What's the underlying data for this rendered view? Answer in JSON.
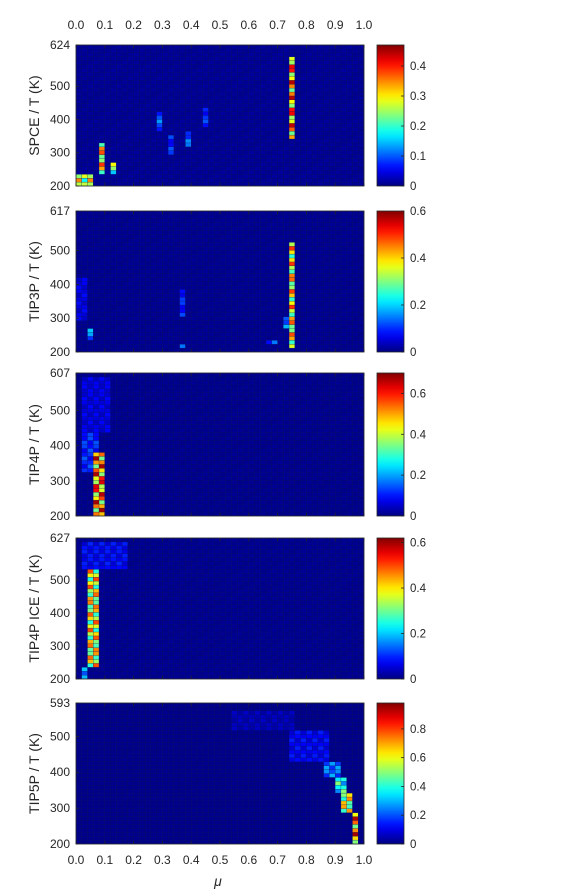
{
  "chart_data": [
    {
      "type": "heatmap",
      "ylabel": "SPCE / T (K)",
      "x_range": [
        0,
        1
      ],
      "y_range": [
        200,
        624
      ],
      "y_ticks": [
        200,
        300,
        400,
        500,
        624
      ],
      "colorbar_range": [
        0,
        0.47
      ],
      "colorbar_ticks": [
        "0",
        "0.1",
        "0.2",
        "0.3",
        "0.4"
      ],
      "hotspots": [
        {
          "mu": [
            0.74,
            0.76
          ],
          "T": [
            340,
            590
          ],
          "peak": 0.45
        },
        {
          "mu": [
            0.08,
            0.1
          ],
          "T": [
            240,
            330
          ],
          "peak": 0.4
        },
        {
          "mu": [
            0.0,
            0.06
          ],
          "T": [
            205,
            232
          ],
          "peak": 0.35
        },
        {
          "mu": [
            0.12,
            0.14
          ],
          "T": [
            230,
            265
          ],
          "peak": 0.3
        },
        {
          "mu": [
            0.28,
            0.29
          ],
          "T": [
            360,
            420
          ],
          "peak": 0.13
        },
        {
          "mu": [
            0.38,
            0.39
          ],
          "T": [
            320,
            370
          ],
          "peak": 0.13
        },
        {
          "mu": [
            0.44,
            0.45
          ],
          "T": [
            380,
            440
          ],
          "peak": 0.1
        },
        {
          "mu": [
            0.33,
            0.34
          ],
          "T": [
            300,
            350
          ],
          "peak": 0.1
        }
      ]
    },
    {
      "type": "heatmap",
      "ylabel": "TIP3P / T (K)",
      "x_range": [
        0,
        1
      ],
      "y_range": [
        200,
        617
      ],
      "y_ticks": [
        200,
        300,
        400,
        500,
        617
      ],
      "colorbar_range": [
        0,
        0.6
      ],
      "colorbar_ticks": [
        "0",
        "0.2",
        "0.4",
        "0.6"
      ],
      "hotspots": [
        {
          "mu": [
            0.74,
            0.76
          ],
          "T": [
            210,
            530
          ],
          "peak": 0.5
        },
        {
          "mu": [
            0.73,
            0.74
          ],
          "T": [
            270,
            300
          ],
          "peak": 0.2
        },
        {
          "mu": [
            0.05,
            0.06
          ],
          "T": [
            240,
            270
          ],
          "peak": 0.2
        },
        {
          "mu": [
            0.37,
            0.38
          ],
          "T": [
            300,
            390
          ],
          "peak": 0.12
        },
        {
          "mu": [
            0.67,
            0.69
          ],
          "T": [
            220,
            240
          ],
          "peak": 0.15
        },
        {
          "mu": [
            0.36,
            0.37
          ],
          "T": [
            210,
            225
          ],
          "peak": 0.15
        },
        {
          "mu": [
            0.01,
            0.03
          ],
          "T": [
            290,
            420
          ],
          "peak": 0.08
        }
      ]
    },
    {
      "type": "heatmap",
      "ylabel": "TIP4P / T (K)",
      "x_range": [
        0,
        1
      ],
      "y_range": [
        200,
        607
      ],
      "y_ticks": [
        200,
        300,
        400,
        500,
        607
      ],
      "colorbar_range": [
        0,
        0.7
      ],
      "colorbar_ticks": [
        "0",
        "0.2",
        "0.4",
        "0.6"
      ],
      "hotspots": [
        {
          "mu": [
            0.07,
            0.09
          ],
          "T": [
            205,
            380
          ],
          "peak": 0.68
        },
        {
          "mu": [
            0.02,
            0.08
          ],
          "T": [
            330,
            440
          ],
          "peak": 0.15
        },
        {
          "mu": [
            0.02,
            0.12
          ],
          "T": [
            440,
            600
          ],
          "peak": 0.09
        }
      ]
    },
    {
      "type": "heatmap",
      "ylabel": "TIP4P ICE / T (K)",
      "x_range": [
        0,
        1
      ],
      "y_range": [
        200,
        627
      ],
      "y_ticks": [
        200,
        300,
        400,
        500,
        627
      ],
      "colorbar_range": [
        0,
        0.62
      ],
      "colorbar_ticks": [
        "0",
        "0.2",
        "0.4",
        "0.6"
      ],
      "hotspots": [
        {
          "mu": [
            0.04,
            0.08
          ],
          "T": [
            230,
            530
          ],
          "peak": 0.5
        },
        {
          "mu": [
            0.02,
            0.04
          ],
          "T": [
            205,
            240
          ],
          "peak": 0.25
        },
        {
          "mu": [
            0.03,
            0.18
          ],
          "T": [
            530,
            620
          ],
          "peak": 0.1
        }
      ]
    },
    {
      "type": "heatmap",
      "ylabel": "TIP5P / T (K)",
      "xlabel": "μ",
      "x_range": [
        0,
        1
      ],
      "y_range": [
        200,
        593
      ],
      "y_ticks": [
        200,
        300,
        400,
        500,
        593
      ],
      "x_ticks": [
        "0.0",
        "0.1",
        "0.2",
        "0.3",
        "0.4",
        "0.5",
        "0.6",
        "0.7",
        "0.8",
        "0.9",
        "1.0"
      ],
      "colorbar_range": [
        0,
        0.98
      ],
      "colorbar_ticks": [
        "0",
        "0.2",
        "0.4",
        "0.6",
        "0.8"
      ],
      "hotspots": [
        {
          "mu": [
            0.96,
            0.98
          ],
          "T": [
            205,
            290
          ],
          "peak": 0.95
        },
        {
          "mu": [
            0.93,
            0.95
          ],
          "T": [
            290,
            340
          ],
          "peak": 0.75
        },
        {
          "mu": [
            0.91,
            0.93
          ],
          "T": [
            340,
            390
          ],
          "peak": 0.5
        },
        {
          "mu": [
            0.87,
            0.91
          ],
          "T": [
            390,
            430
          ],
          "peak": 0.3
        },
        {
          "mu": [
            0.75,
            0.87
          ],
          "T": [
            430,
            520
          ],
          "peak": 0.15
        },
        {
          "mu": [
            0.55,
            0.75
          ],
          "T": [
            520,
            570
          ],
          "peak": 0.07
        }
      ]
    }
  ],
  "top_axis_ticks": [
    "0.0",
    "0.1",
    "0.2",
    "0.3",
    "0.4",
    "0.5",
    "0.6",
    "0.7",
    "0.8",
    "0.9",
    "1.0"
  ]
}
